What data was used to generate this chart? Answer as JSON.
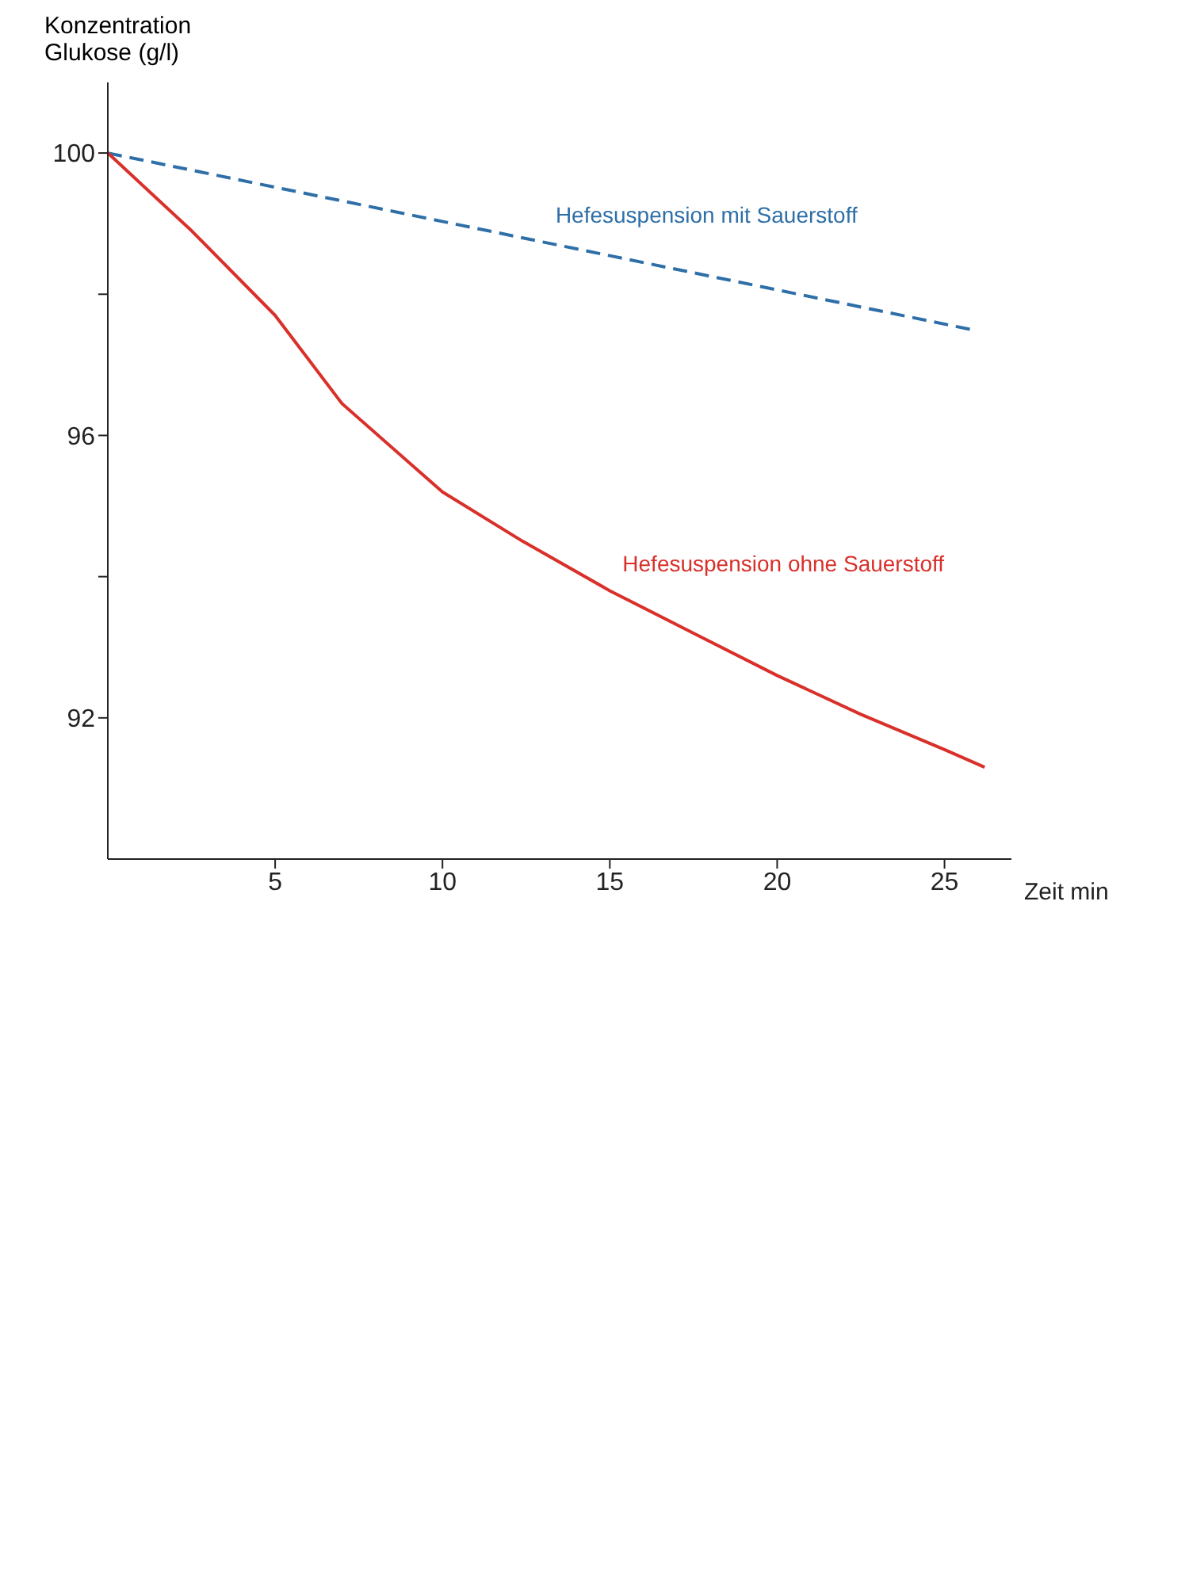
{
  "chart_data": {
    "type": "line",
    "xlabel": "Zeit min",
    "ylabel": "Konzentration Glukose (g/l)",
    "xlim": [
      0,
      27
    ],
    "ylim": [
      90,
      101
    ],
    "xticks": [
      5,
      10,
      15,
      20,
      25
    ],
    "yticks": [
      92,
      {
        "value": 94,
        "label": null
      },
      96,
      {
        "value": 98,
        "label": null
      },
      100
    ],
    "grid": false,
    "legend": false,
    "marker": "none",
    "series": [
      {
        "name": "Hefesuspension mit Sauerstoff",
        "color": "#2f6fa8",
        "line_style": "dashed",
        "x": [
          0,
          6.5,
          13,
          19.5,
          25.8
        ],
        "values": [
          100,
          99.37,
          98.74,
          98.11,
          97.5
        ]
      },
      {
        "name": "Hefesuspension ohne Sauerstoff",
        "color": "#d9302a",
        "line_style": "solid",
        "x": [
          0,
          2.5,
          5,
          7,
          10,
          12.4,
          15,
          17.5,
          20,
          22.5,
          25,
          26.2
        ],
        "values": [
          100,
          98.9,
          97.7,
          96.45,
          95.2,
          94.5,
          93.8,
          93.2,
          92.6,
          92.05,
          91.55,
          91.3
        ]
      }
    ]
  }
}
